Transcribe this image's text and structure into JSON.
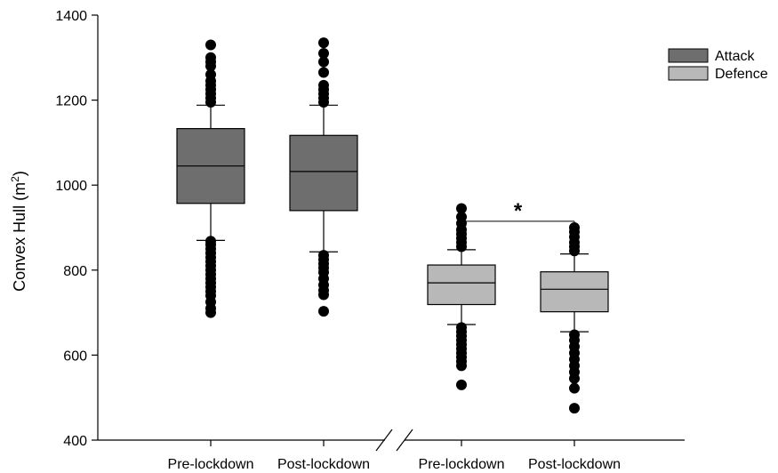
{
  "chart_data": {
    "type": "box",
    "ylabel": "Convex Hull (m",
    "ylabel_superscript": "2",
    "ylabel_close": ")",
    "ylim": [
      400,
      1400
    ],
    "yticks": [
      400,
      600,
      800,
      1000,
      1200,
      1400
    ],
    "grid": false,
    "legend_position": "top-right",
    "categories": [
      "Pre-lockdown",
      "Post-lockdown",
      "Pre-lockdown",
      "Post-lockdown"
    ],
    "series": [
      {
        "name": "Attack",
        "color": "#6e6e6e",
        "boxes": [
          {
            "category_index": 0,
            "whisker_low": 870,
            "q1": 957,
            "median": 1045,
            "q3": 1133,
            "whisker_high": 1188,
            "outliers": [
              700,
              710,
              725,
              740,
              750,
              760,
              770,
              780,
              790,
              800,
              810,
              820,
              830,
              840,
              850,
              860,
              868,
              1195,
              1205,
              1215,
              1225,
              1235,
              1245,
              1260,
              1280,
              1290,
              1300,
              1330
            ]
          },
          {
            "category_index": 1,
            "whisker_low": 843,
            "q1": 940,
            "median": 1032,
            "q3": 1117,
            "whisker_high": 1188,
            "outliers": [
              703,
              742,
              752,
              765,
              780,
              795,
              805,
              815,
              825,
              835,
              1195,
              1205,
              1215,
              1225,
              1235,
              1265,
              1290,
              1310,
              1335
            ]
          }
        ]
      },
      {
        "name": "Defence",
        "color": "#b8b8b8",
        "boxes": [
          {
            "category_index": 2,
            "whisker_low": 672,
            "q1": 719,
            "median": 770,
            "q3": 812,
            "whisker_high": 848,
            "outliers": [
              530,
              575,
              585,
              595,
              605,
              615,
              625,
              635,
              645,
              655,
              665,
              855,
              865,
              875,
              885,
              895,
              910,
              925,
              945
            ]
          },
          {
            "category_index": 3,
            "whisker_low": 655,
            "q1": 702,
            "median": 755,
            "q3": 796,
            "whisker_high": 838,
            "outliers": [
              475,
              522,
              545,
              560,
              575,
              590,
              605,
              620,
              635,
              648,
              845,
              855,
              865,
              878,
              890,
              900
            ]
          }
        ]
      }
    ],
    "annotations": [
      {
        "type": "significance",
        "text": "*",
        "from_category": 2,
        "to_category": 3,
        "y": 915
      }
    ],
    "axis_break": true
  }
}
